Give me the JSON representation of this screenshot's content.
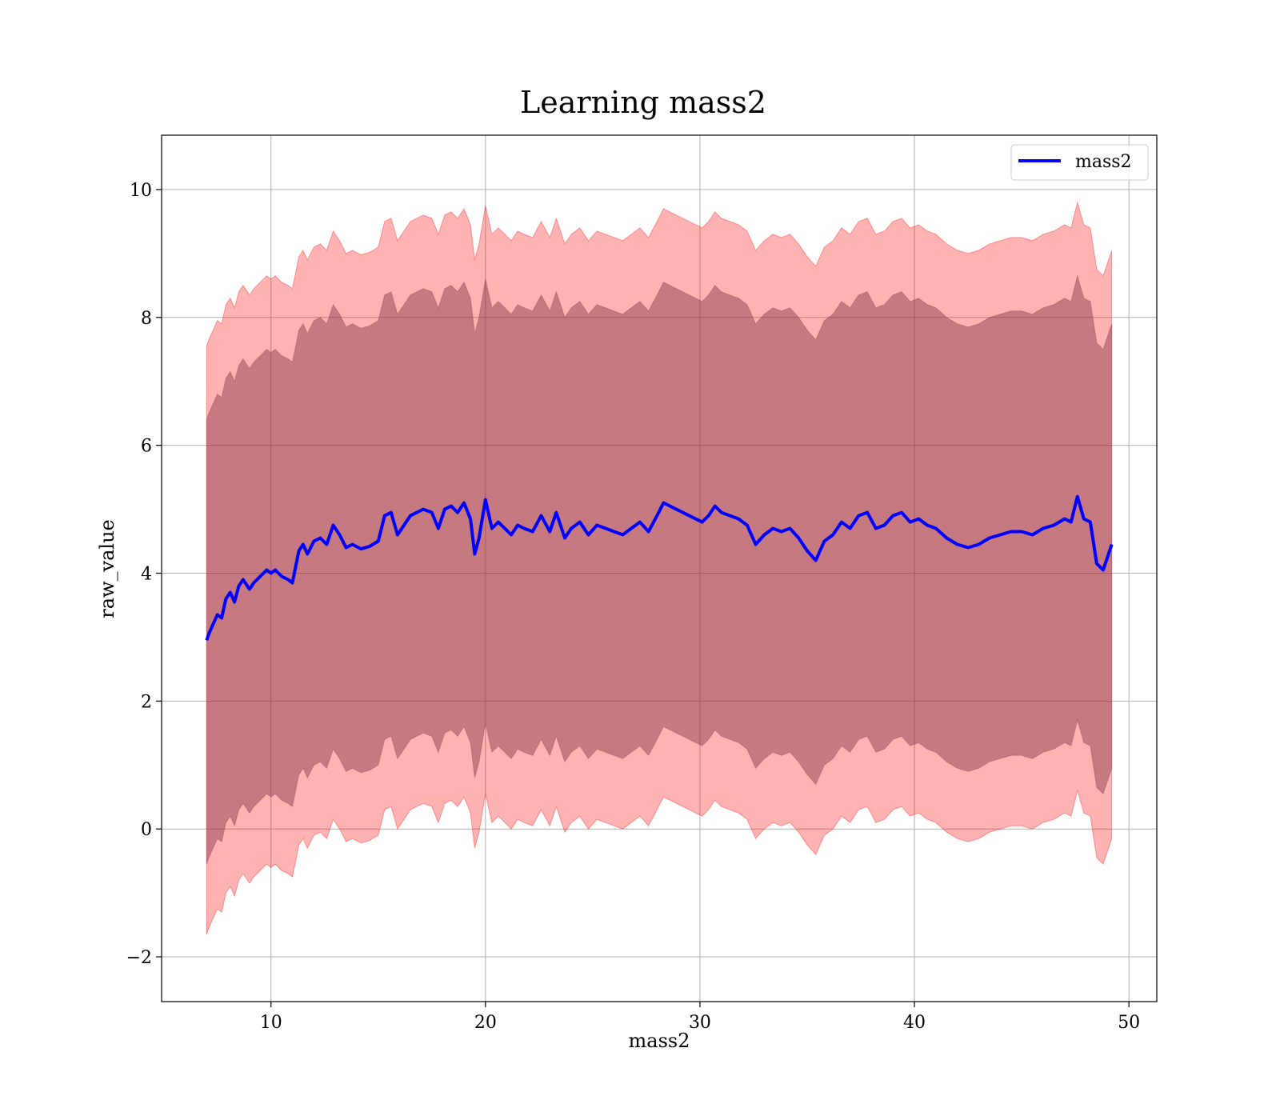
{
  "chart_data": {
    "type": "area",
    "title": "Learning mass2",
    "xlabel": "mass2",
    "ylabel": "raw_value",
    "xlim": [
      4.9,
      51.3
    ],
    "ylim": [
      -2.7,
      10.85
    ],
    "xticks": [
      10,
      20,
      30,
      40,
      50
    ],
    "xtick_labels": [
      "10",
      "20",
      "30",
      "40",
      "50"
    ],
    "yticks": [
      -2,
      0,
      2,
      4,
      6,
      8,
      10
    ],
    "ytick_labels": [
      "−2",
      "0",
      "2",
      "4",
      "6",
      "8",
      "10"
    ],
    "grid": true,
    "legend": {
      "location": "upper right",
      "entries": [
        "mass2"
      ]
    },
    "colors": {
      "line": "#0000ff",
      "band": "#ff0000",
      "band_alpha": 0.3,
      "axes": "#000000",
      "grid": "#b0b0b0"
    },
    "series": [
      {
        "name": "mass2",
        "x": [
          7.0,
          7.1,
          7.3,
          7.5,
          7.7,
          7.9,
          8.1,
          8.3,
          8.5,
          8.7,
          9.0,
          9.2,
          9.5,
          9.8,
          10.0,
          10.2,
          10.5,
          10.8,
          11.0,
          11.3,
          11.5,
          11.7,
          12.0,
          12.3,
          12.6,
          12.9,
          13.2,
          13.5,
          13.8,
          14.2,
          14.6,
          15.0,
          15.3,
          15.6,
          15.9,
          16.2,
          16.5,
          16.8,
          17.1,
          17.5,
          17.8,
          18.1,
          18.4,
          18.7,
          19.0,
          19.3,
          19.5,
          19.7,
          20.0,
          20.3,
          20.6,
          20.9,
          21.2,
          21.5,
          21.8,
          22.2,
          22.6,
          23.0,
          23.3,
          23.7,
          24.0,
          24.4,
          24.8,
          25.2,
          25.6,
          26.0,
          26.4,
          26.8,
          27.2,
          27.6,
          28.0,
          28.3,
          28.6,
          28.9,
          29.2,
          29.5,
          29.8,
          30.1,
          30.4,
          30.7,
          31.0,
          31.4,
          31.8,
          32.2,
          32.6,
          33.0,
          33.4,
          33.8,
          34.2,
          34.6,
          35.0,
          35.4,
          35.8,
          36.2,
          36.6,
          37.0,
          37.4,
          37.8,
          38.2,
          38.6,
          39.0,
          39.4,
          39.8,
          40.2,
          40.6,
          41.0,
          41.5,
          42.0,
          42.5,
          43.0,
          43.5,
          44.0,
          44.5,
          45.0,
          45.5,
          46.0,
          46.5,
          47.0,
          47.3,
          47.6,
          47.9,
          48.2,
          48.5,
          48.8,
          49.2
        ],
        "mean": [
          2.95,
          3.05,
          3.2,
          3.35,
          3.3,
          3.6,
          3.7,
          3.55,
          3.8,
          3.9,
          3.75,
          3.85,
          3.95,
          4.05,
          4.0,
          4.05,
          3.95,
          3.9,
          3.85,
          4.35,
          4.45,
          4.3,
          4.5,
          4.55,
          4.45,
          4.75,
          4.6,
          4.4,
          4.45,
          4.38,
          4.42,
          4.5,
          4.9,
          4.95,
          4.6,
          4.75,
          4.9,
          4.95,
          5.0,
          4.95,
          4.7,
          5.0,
          5.05,
          4.95,
          5.1,
          4.85,
          4.3,
          4.55,
          5.15,
          4.7,
          4.8,
          4.7,
          4.6,
          4.75,
          4.7,
          4.65,
          4.9,
          4.65,
          4.95,
          4.55,
          4.7,
          4.8,
          4.6,
          4.75,
          4.7,
          4.65,
          4.6,
          4.7,
          4.8,
          4.65,
          4.9,
          5.1,
          5.05,
          5.0,
          4.95,
          4.9,
          4.85,
          4.8,
          4.9,
          5.05,
          4.95,
          4.9,
          4.85,
          4.75,
          4.45,
          4.6,
          4.7,
          4.65,
          4.7,
          4.55,
          4.35,
          4.2,
          4.5,
          4.6,
          4.8,
          4.7,
          4.9,
          4.95,
          4.7,
          4.75,
          4.9,
          4.95,
          4.8,
          4.85,
          4.75,
          4.7,
          4.55,
          4.45,
          4.4,
          4.45,
          4.55,
          4.6,
          4.65,
          4.65,
          4.6,
          4.7,
          4.75,
          4.85,
          4.8,
          5.2,
          4.85,
          4.8,
          4.15,
          4.05,
          4.45
        ],
        "band_inner": {
          "lower_offset": 3.5,
          "upper_offset": 3.45
        },
        "band_outer": {
          "lower_offset": 4.6,
          "upper_offset": 4.6
        }
      }
    ]
  }
}
